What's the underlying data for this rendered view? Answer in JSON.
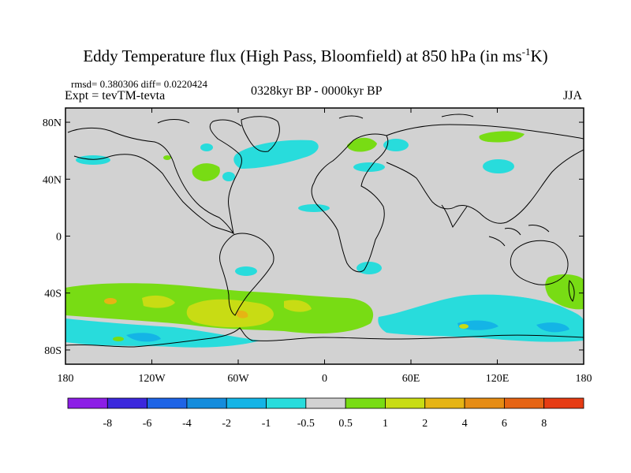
{
  "title": {
    "main": "Eddy Temperature flux (High Pass, Bloomfield) at 850 hPa (in ms",
    "sup": "-1",
    "end": "K)"
  },
  "stats": {
    "rmsd": "rmsd= 0.380306 diff= 0.0220424",
    "expt": "Expt = tevTM-tevta",
    "period": "0328kyr BP - 0000kyr BP",
    "season": "JJA"
  },
  "axes": {
    "lat_ticks": [
      "80N",
      "40N",
      "0",
      "40S",
      "80S"
    ],
    "lon_ticks": [
      "180",
      "120W",
      "60W",
      "0",
      "60E",
      "120E",
      "180"
    ]
  },
  "colorbar": {
    "labels": [
      "-8",
      "-6",
      "-4",
      "-2",
      "-1",
      "-0.5",
      "0.5",
      "1",
      "2",
      "4",
      "6",
      "8"
    ],
    "colors": [
      "#8c1ee6",
      "#3c28dc",
      "#1e64e6",
      "#148cdc",
      "#14b4e6",
      "#28dcdc",
      "#d2d2d2",
      "#78dc14",
      "#c8dc14",
      "#e6b414",
      "#e68c14",
      "#e66414",
      "#e63c14"
    ]
  }
}
